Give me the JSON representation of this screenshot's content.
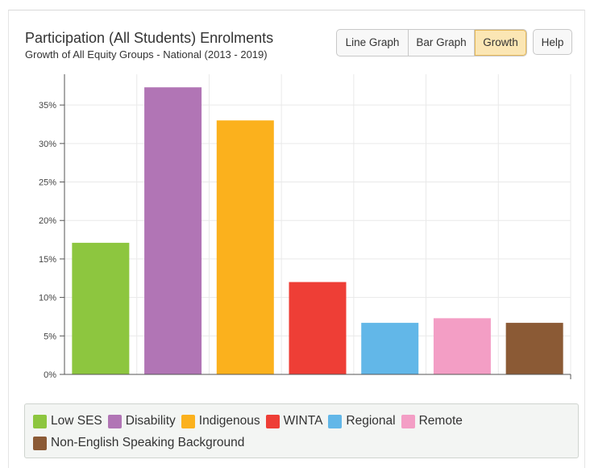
{
  "header": {
    "title": "Participation (All Students) Enrolments",
    "subtitle": "Growth of All Equity Groups - National (2013 - 2019)"
  },
  "buttons": {
    "line_graph": "Line Graph",
    "bar_graph": "Bar Graph",
    "growth": "Growth",
    "help": "Help",
    "active": "growth"
  },
  "colors": {
    "active_button": "#fbe6b4",
    "gridline": "#e9e9e9",
    "axis": "#555555"
  },
  "chart_data": {
    "type": "bar",
    "categories": [
      "Low SES",
      "Disability",
      "Indigenous",
      "WINTA",
      "Regional",
      "Remote",
      "Non-English Speaking Background"
    ],
    "values": [
      17.1,
      37.3,
      33.0,
      12.0,
      6.7,
      7.3,
      6.7
    ],
    "colors": [
      "#8dc63f",
      "#b175b5",
      "#fbb11d",
      "#ee3e36",
      "#62b7e8",
      "#f39ec5",
      "#8b5a35"
    ],
    "ylim": [
      0,
      39
    ],
    "yticks": [
      0,
      5,
      10,
      15,
      20,
      25,
      30,
      35
    ],
    "ytick_labels": [
      "0%",
      "5%",
      "10%",
      "15%",
      "20%",
      "25%",
      "30%",
      "35%"
    ],
    "grid": true,
    "legend_position": "bottom"
  }
}
